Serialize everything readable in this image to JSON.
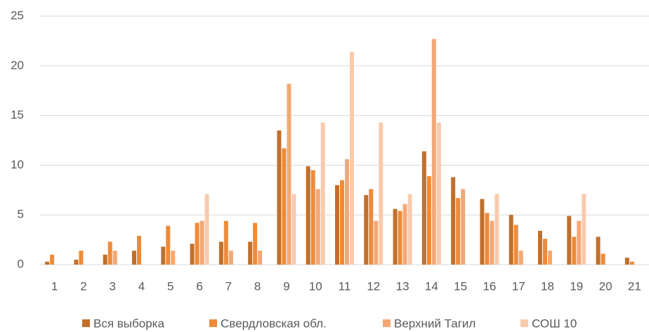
{
  "chart_data": {
    "type": "bar",
    "categories": [
      "1",
      "2",
      "3",
      "4",
      "5",
      "6",
      "7",
      "8",
      "9",
      "10",
      "11",
      "12",
      "13",
      "14",
      "15",
      "16",
      "17",
      "18",
      "19",
      "20",
      "21"
    ],
    "series": [
      {
        "name": "Вся выборка",
        "color": "#c0702c",
        "values": [
          0.3,
          0.5,
          1.0,
          1.4,
          1.8,
          2.1,
          2.3,
          2.3,
          13.5,
          9.9,
          8.0,
          7.0,
          5.6,
          11.4,
          8.8,
          6.6,
          5.0,
          3.4,
          4.9,
          2.8,
          0.7
        ]
      },
      {
        "name": "Свердловская обл.",
        "color": "#ed8b3a",
        "values": [
          1.0,
          1.4,
          2.3,
          2.9,
          3.9,
          4.2,
          4.4,
          4.2,
          11.7,
          9.5,
          8.5,
          7.6,
          5.4,
          8.9,
          6.7,
          5.2,
          4.0,
          2.6,
          2.8,
          1.1,
          0.3
        ]
      },
      {
        "name": "Верхний Тагил",
        "color": "#f4a875",
        "values": [
          0,
          0,
          1.4,
          0,
          1.4,
          4.4,
          1.4,
          1.4,
          18.2,
          7.6,
          10.6,
          4.4,
          6.1,
          22.7,
          7.6,
          4.4,
          1.4,
          1.4,
          4.4,
          0,
          0
        ]
      },
      {
        "name": "СОШ 10",
        "color": "#f8cbad",
        "values": [
          0,
          0,
          0,
          0,
          0,
          7.1,
          0,
          0,
          7.1,
          14.3,
          21.4,
          14.3,
          7.1,
          14.3,
          0,
          7.1,
          0,
          0,
          7.1,
          0,
          0
        ]
      }
    ],
    "ylim": [
      0,
      25
    ],
    "yticks": [
      0,
      5,
      10,
      15,
      20,
      25
    ],
    "grid": true,
    "legend": "bottom"
  }
}
